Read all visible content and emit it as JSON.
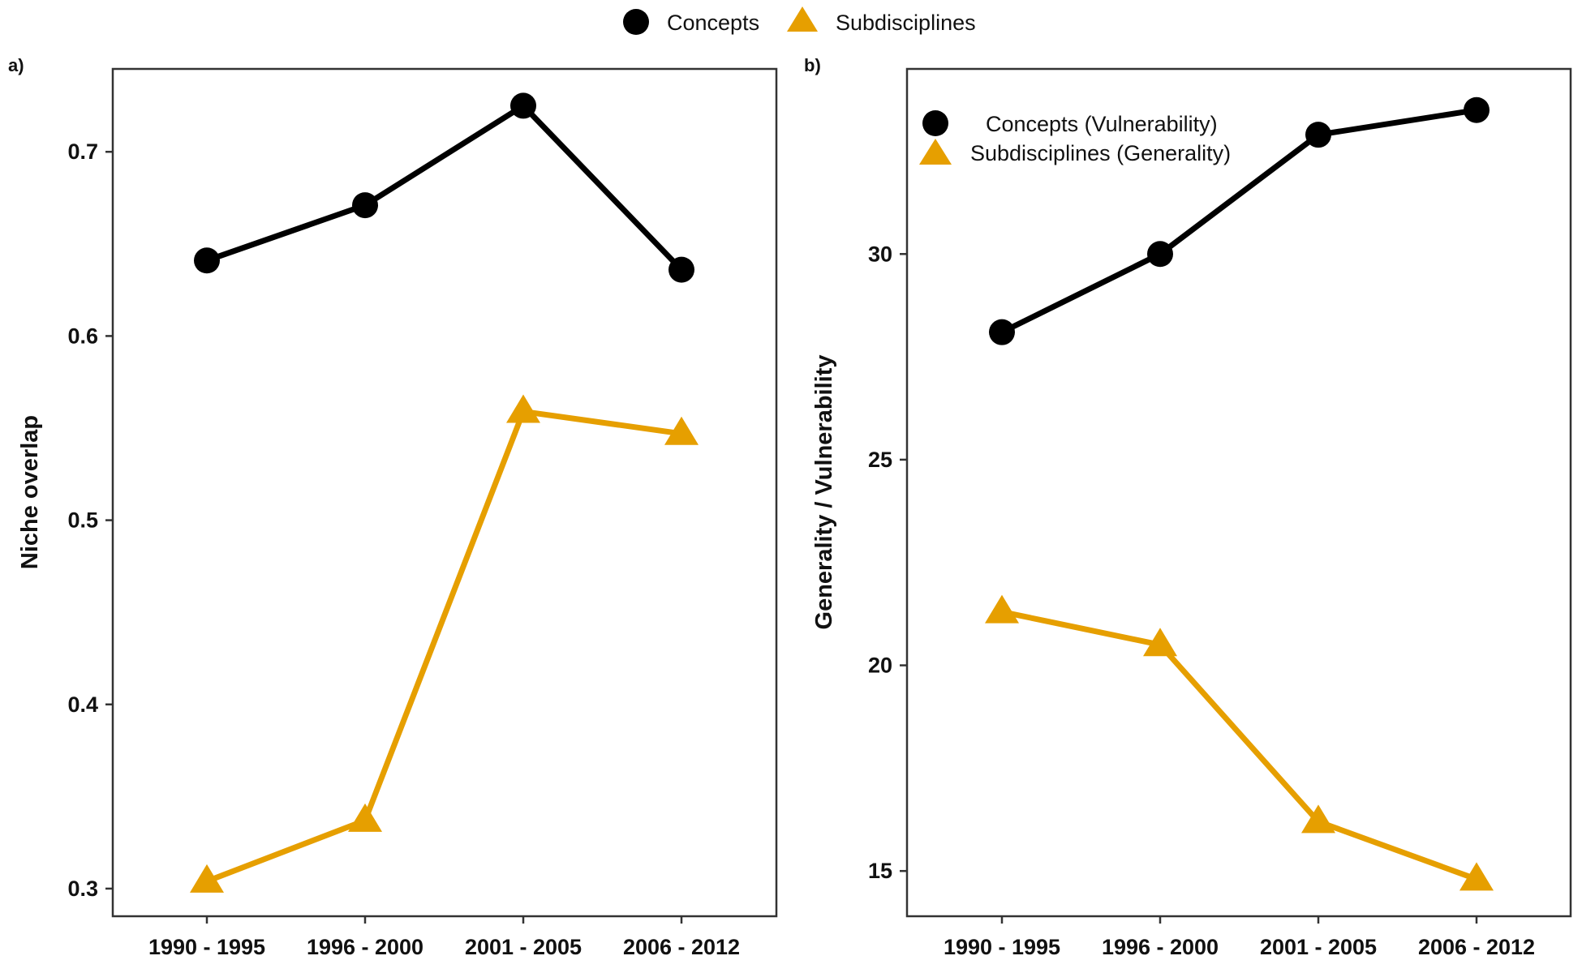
{
  "legend": {
    "items": [
      {
        "label": "Concepts",
        "marker": "circle",
        "color": "#000000"
      },
      {
        "label": "Subdisciplines",
        "marker": "triangle",
        "color": "#E69F00"
      }
    ],
    "placement": "top-center"
  },
  "chart_data": [
    {
      "type": "line",
      "panel": "a)",
      "title": "",
      "xlabel": "",
      "ylabel": "Niche overlap",
      "categories": [
        "1990 - 1995",
        "1996 - 2000",
        "2001 - 2005",
        "2006 - 2012"
      ],
      "ylim": [
        0.285,
        0.745
      ],
      "yticks": [
        0.3,
        0.4,
        0.5,
        0.6,
        0.7
      ],
      "ytick_labels": [
        "0.3",
        "0.4",
        "0.5",
        "0.6",
        "0.7"
      ],
      "grid": false,
      "series": [
        {
          "name": "Concepts",
          "marker": "circle",
          "color": "#000000",
          "values": [
            0.641,
            0.671,
            0.725,
            0.636
          ]
        },
        {
          "name": "Subdisciplines",
          "marker": "triangle",
          "color": "#E69F00",
          "values": [
            0.304,
            0.337,
            0.559,
            0.547
          ]
        }
      ]
    },
    {
      "type": "line",
      "panel": "b)",
      "title": "",
      "xlabel": "",
      "ylabel": "Generality / Vulnerability",
      "categories": [
        "1990 - 1995",
        "1996 - 2000",
        "2001 - 2005",
        "2006 - 2012"
      ],
      "ylim": [
        13.9,
        34.5
      ],
      "yticks": [
        15,
        20,
        25,
        30
      ],
      "ytick_labels": [
        "15",
        "20",
        "25",
        "30"
      ],
      "grid": false,
      "legend": {
        "placement": "top-left",
        "items": [
          {
            "label": "Concepts (Vulnerability)",
            "marker": "circle",
            "color": "#000000"
          },
          {
            "label": "Subdisciplines (Generality)",
            "marker": "triangle",
            "color": "#E69F00"
          }
        ]
      },
      "series": [
        {
          "name": "Concepts (Vulnerability)",
          "marker": "circle",
          "color": "#000000",
          "values": [
            28.1,
            30.0,
            32.9,
            33.5
          ]
        },
        {
          "name": "Subdisciplines (Generality)",
          "marker": "triangle",
          "color": "#E69F00",
          "values": [
            21.3,
            20.5,
            16.2,
            14.8
          ]
        }
      ]
    }
  ]
}
